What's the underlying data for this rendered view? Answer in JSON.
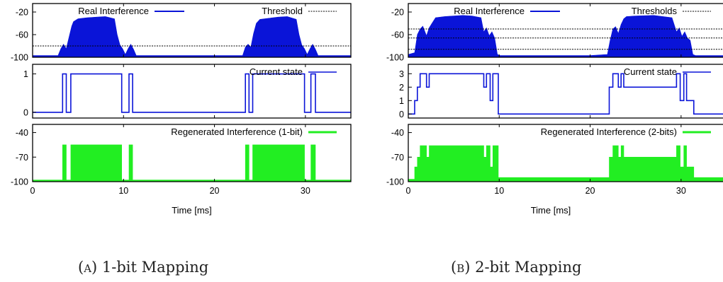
{
  "figures": [
    {
      "id": "a",
      "caption_letter": "(a)",
      "caption_text": "1-bit Mapping",
      "xlabel": "Time [ms]",
      "x_ticks": [
        "0",
        "10",
        "20",
        "30"
      ],
      "panels": [
        {
          "legend": "Real Interference",
          "legend2": "Threshold",
          "y_ticks": [
            "-20",
            "-60",
            "-100"
          ]
        },
        {
          "legend": "Current state",
          "y_ticks": [
            "1",
            "0"
          ]
        },
        {
          "legend": "Regenerated Interference (1-bit)",
          "y_ticks": [
            "-40",
            "-70",
            "-100"
          ]
        }
      ]
    },
    {
      "id": "b",
      "caption_letter": "(b)",
      "caption_text": "2-bit Mapping",
      "xlabel": "Time [ms]",
      "x_ticks": [
        "0",
        "10",
        "20",
        "30"
      ],
      "panels": [
        {
          "legend": "Real Interference",
          "legend2": "Thresholds",
          "y_ticks": [
            "-20",
            "-60",
            "-100"
          ]
        },
        {
          "legend": "Current state",
          "y_ticks": [
            "3",
            "2",
            "1",
            "0"
          ]
        },
        {
          "legend": "Regenerated Interference (2-bits)",
          "y_ticks": [
            "-40",
            "-70",
            "-100"
          ]
        }
      ]
    }
  ],
  "colors": {
    "real": "#0a14d8",
    "state": "#0a14d8",
    "regen": "#22ee22",
    "threshold": "#000000"
  },
  "chart_data": [
    {
      "type": "area",
      "title": "",
      "xlabel": "Time [ms]",
      "xlim": [
        0,
        35
      ],
      "subplots": [
        {
          "name": "Real Interference",
          "ylim": [
            -100,
            -5
          ],
          "ticks": [
            -20,
            -60,
            -100
          ],
          "thresholds": [
            -80
          ],
          "x": [
            0,
            2.8,
            3.1,
            3.4,
            3.7,
            4.0,
            4.3,
            4.5,
            5,
            6,
            7,
            8,
            9,
            9.3,
            9.6,
            9.9,
            10.2,
            10.5,
            10.8,
            11.1,
            11.4,
            20,
            23.1,
            23.4,
            23.7,
            24.0,
            24.3,
            24.6,
            25,
            26,
            27,
            28,
            29,
            29.3,
            29.6,
            29.9,
            30.2,
            30.5,
            30.8,
            31.1,
            31.4,
            35
          ],
          "y": [
            -97,
            -97,
            -85,
            -77,
            -85,
            -65,
            -45,
            -37,
            -32,
            -30,
            -29,
            -28,
            -32,
            -60,
            -78,
            -85,
            -95,
            -85,
            -77,
            -86,
            -97,
            -97,
            -97,
            -82,
            -77,
            -82,
            -58,
            -40,
            -33,
            -31,
            -29,
            -28,
            -33,
            -60,
            -78,
            -85,
            -95,
            -85,
            -77,
            -86,
            -97,
            -97
          ]
        },
        {
          "name": "Current state",
          "ylim": [
            -0.15,
            1.25
          ],
          "ticks": [
            1,
            0
          ],
          "x": [
            0,
            3.3,
            3.3,
            3.7,
            3.7,
            4.2,
            4.2,
            9.8,
            9.8,
            10.6,
            10.6,
            11.0,
            11.0,
            23.4,
            23.4,
            23.8,
            23.8,
            24.2,
            24.2,
            29.9,
            29.9,
            30.6,
            30.6,
            31.1,
            31.1,
            35
          ],
          "y": [
            0,
            0,
            1,
            1,
            0,
            0,
            1,
            1,
            0,
            0,
            1,
            1,
            0,
            0,
            1,
            1,
            0,
            0,
            1,
            1,
            0,
            0,
            1,
            1,
            0,
            0
          ]
        },
        {
          "name": "Regenerated Interference (1-bit)",
          "ylim": [
            -100,
            -30
          ],
          "ticks": [
            -40,
            -70,
            -100
          ],
          "x": [
            0,
            3.3,
            3.3,
            3.7,
            3.7,
            4.2,
            4.2,
            9.8,
            9.8,
            10.6,
            10.6,
            11.0,
            11.0,
            23.4,
            23.4,
            23.8,
            23.8,
            24.2,
            24.2,
            29.9,
            29.9,
            30.6,
            30.6,
            31.1,
            31.1,
            35
          ],
          "y": [
            -98,
            -98,
            -55,
            -55,
            -98,
            -98,
            -55,
            -55,
            -98,
            -98,
            -55,
            -55,
            -98,
            -98,
            -55,
            -55,
            -98,
            -98,
            -55,
            -55,
            -98,
            -98,
            -55,
            -55,
            -98,
            -98
          ]
        }
      ]
    },
    {
      "type": "area",
      "title": "",
      "xlabel": "Time [ms]",
      "xlim": [
        0,
        35
      ],
      "subplots": [
        {
          "name": "Real Interference",
          "ylim": [
            -100,
            -5
          ],
          "thresholds": [
            -50,
            -66,
            -86
          ],
          "ticks": [
            -20,
            -60,
            -100
          ],
          "x": [
            0,
            0.7,
            1.0,
            1.3,
            1.6,
            2.0,
            2.3,
            2.6,
            3,
            4,
            5,
            6,
            7,
            8,
            8.3,
            8.6,
            8.9,
            9.2,
            9.5,
            9.8,
            10.1,
            20,
            21.9,
            22.2,
            22.5,
            22.8,
            23.1,
            23.4,
            23.7,
            24,
            25,
            27,
            29,
            29.5,
            29.8,
            30.1,
            30.4,
            30.7,
            31.0,
            31.3,
            31.6,
            35
          ],
          "y": [
            -95,
            -92,
            -60,
            -50,
            -45,
            -62,
            -48,
            -40,
            -30,
            -28,
            -27,
            -26,
            -27,
            -30,
            -55,
            -48,
            -62,
            -55,
            -66,
            -95,
            -97,
            -97,
            -95,
            -70,
            -50,
            -46,
            -58,
            -42,
            -32,
            -28,
            -27,
            -26,
            -30,
            -55,
            -48,
            -63,
            -55,
            -66,
            -70,
            -95,
            -97,
            -97
          ]
        },
        {
          "name": "Current state",
          "ylim": [
            -0.3,
            3.7
          ],
          "ticks": [
            3,
            2,
            1,
            0
          ],
          "x": [
            0,
            0.7,
            0.7,
            1.0,
            1.0,
            1.3,
            1.3,
            2.0,
            2.0,
            2.3,
            2.3,
            8.3,
            8.3,
            8.6,
            8.6,
            9.0,
            9.0,
            9.3,
            9.3,
            9.9,
            9.9,
            22.1,
            22.1,
            22.5,
            22.5,
            23.1,
            23.1,
            23.4,
            23.4,
            23.7,
            23.7,
            29.5,
            29.5,
            29.9,
            29.9,
            30.3,
            30.3,
            30.6,
            30.6,
            31.4,
            31.4,
            35
          ],
          "y": [
            0,
            0,
            1,
            1,
            2,
            2,
            3,
            3,
            2,
            2,
            3,
            3,
            2,
            2,
            3,
            3,
            1,
            1,
            3,
            3,
            0,
            0,
            2,
            2,
            3,
            3,
            2,
            2,
            3,
            3,
            2,
            2,
            3,
            3,
            1,
            1,
            3,
            3,
            1,
            1,
            0,
            0
          ]
        },
        {
          "name": "Regenerated Interference (2-bits)",
          "ylim": [
            -100,
            -30
          ],
          "ticks": [
            -40,
            -70,
            -100
          ],
          "x": [
            0,
            0.7,
            0.7,
            1.0,
            1.0,
            1.3,
            1.3,
            2.0,
            2.0,
            2.3,
            2.3,
            8.3,
            8.3,
            8.6,
            8.6,
            9.0,
            9.0,
            9.3,
            9.3,
            9.9,
            9.9,
            22.1,
            22.1,
            22.5,
            22.5,
            23.1,
            23.1,
            23.4,
            23.4,
            23.7,
            23.7,
            29.5,
            29.5,
            29.9,
            29.9,
            30.3,
            30.3,
            30.6,
            30.6,
            31.4,
            31.4,
            35
          ],
          "y": [
            -97,
            -97,
            -82,
            -82,
            -70,
            -70,
            -56,
            -56,
            -70,
            -70,
            -56,
            -56,
            -70,
            -70,
            -56,
            -56,
            -82,
            -82,
            -56,
            -56,
            -95,
            -95,
            -70,
            -70,
            -56,
            -56,
            -70,
            -70,
            -56,
            -56,
            -70,
            -70,
            -56,
            -56,
            -82,
            -82,
            -56,
            -56,
            -82,
            -82,
            -95,
            -95
          ]
        }
      ]
    }
  ]
}
